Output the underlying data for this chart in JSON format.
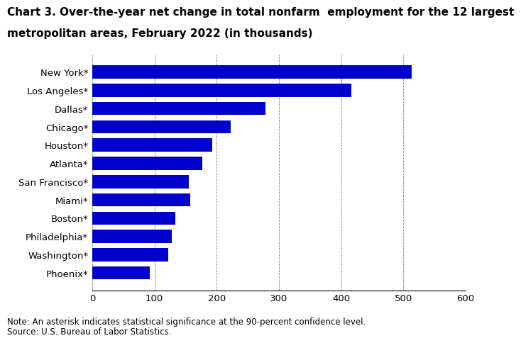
{
  "title_line1": "Chart 3. Over-the-year net change in total nonfarm  employment for the 12 largest",
  "title_line2": "metropolitan areas, February 2022 (in thousands)",
  "categories": [
    "Phoenix*",
    "Washington*",
    "Philadelphia*",
    "Boston*",
    "Miami*",
    "San Francisco*",
    "Atlanta*",
    "Houston*",
    "Chicago*",
    "Dallas*",
    "Los Angeles*",
    "New York*"
  ],
  "values": [
    93,
    122,
    128,
    133,
    158,
    155,
    177,
    193,
    222,
    278,
    416,
    513
  ],
  "bar_color": "#0000cc",
  "xlim": [
    0,
    600
  ],
  "xticks": [
    0,
    100,
    200,
    300,
    400,
    500,
    600
  ],
  "note": "Note: An asterisk indicates statistical significance at the 90-percent confidence level.",
  "source": "Source: U.S. Bureau of Labor Statistics.",
  "title_fontsize": 11.0,
  "tick_fontsize": 9.5,
  "note_fontsize": 8.5
}
